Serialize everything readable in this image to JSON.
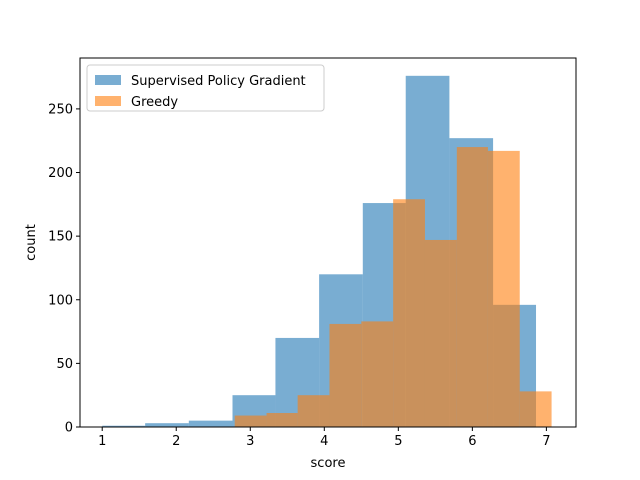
{
  "chart_data": {
    "type": "bar",
    "title": "",
    "xlabel": "score",
    "ylabel": "count",
    "xlim": [
      0.7,
      7.4
    ],
    "ylim": [
      0,
      290
    ],
    "xticks": [
      1,
      2,
      3,
      4,
      5,
      6,
      7
    ],
    "yticks": [
      0,
      50,
      100,
      150,
      200,
      250
    ],
    "grid": false,
    "legend_position": "upper-left",
    "series": [
      {
        "name": "Supervised Policy Gradient",
        "color": "#1f77b4",
        "opacity": 0.6,
        "bins": [
          {
            "x0": 1.0,
            "x1": 1.58,
            "count": 1
          },
          {
            "x0": 1.58,
            "x1": 2.17,
            "count": 3
          },
          {
            "x0": 2.17,
            "x1": 2.76,
            "count": 5
          },
          {
            "x0": 2.76,
            "x1": 3.34,
            "count": 25
          },
          {
            "x0": 3.34,
            "x1": 3.93,
            "count": 70
          },
          {
            "x0": 3.93,
            "x1": 4.52,
            "count": 120
          },
          {
            "x0": 4.52,
            "x1": 5.1,
            "count": 176
          },
          {
            "x0": 5.1,
            "x1": 5.69,
            "count": 276
          },
          {
            "x0": 5.69,
            "x1": 6.28,
            "count": 227
          },
          {
            "x0": 6.28,
            "x1": 6.86,
            "count": 96
          }
        ]
      },
      {
        "name": "Greedy",
        "color": "#ff7f0e",
        "opacity": 0.6,
        "bins": [
          {
            "x0": 2.79,
            "x1": 3.22,
            "count": 9
          },
          {
            "x0": 3.22,
            "x1": 3.64,
            "count": 11
          },
          {
            "x0": 3.64,
            "x1": 4.07,
            "count": 25
          },
          {
            "x0": 4.07,
            "x1": 4.5,
            "count": 81
          },
          {
            "x0": 4.5,
            "x1": 4.93,
            "count": 83
          },
          {
            "x0": 4.93,
            "x1": 5.36,
            "count": 179
          },
          {
            "x0": 5.36,
            "x1": 5.79,
            "count": 147
          },
          {
            "x0": 5.79,
            "x1": 6.21,
            "count": 220
          },
          {
            "x0": 6.21,
            "x1": 6.64,
            "count": 217
          },
          {
            "x0": 6.64,
            "x1": 6.86,
            "count": 28
          },
          {
            "x0": 6.86,
            "x1": 7.07,
            "count": 28
          }
        ]
      }
    ]
  }
}
